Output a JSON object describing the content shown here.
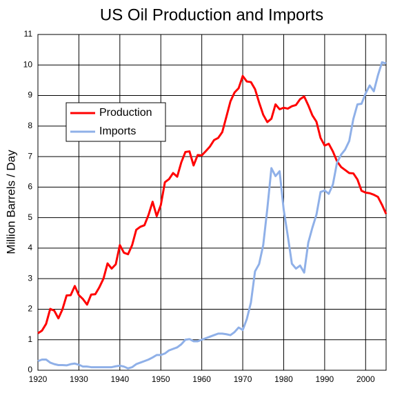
{
  "chart_data": {
    "type": "line",
    "title": "US Oil Production and Imports",
    "y_label": "Million Barrels / Day",
    "x": [
      1920,
      1921,
      1922,
      1923,
      1924,
      1925,
      1926,
      1927,
      1928,
      1929,
      1930,
      1931,
      1932,
      1933,
      1934,
      1935,
      1936,
      1937,
      1938,
      1939,
      1940,
      1941,
      1942,
      1943,
      1944,
      1945,
      1946,
      1947,
      1948,
      1949,
      1950,
      1951,
      1952,
      1953,
      1954,
      1955,
      1956,
      1957,
      1958,
      1959,
      1960,
      1961,
      1962,
      1963,
      1964,
      1965,
      1966,
      1967,
      1968,
      1969,
      1970,
      1971,
      1972,
      1973,
      1974,
      1975,
      1976,
      1977,
      1978,
      1979,
      1980,
      1981,
      1982,
      1983,
      1984,
      1985,
      1986,
      1987,
      1988,
      1989,
      1990,
      1991,
      1992,
      1993,
      1994,
      1995,
      1996,
      1997,
      1998,
      1999,
      2000,
      2001,
      2002,
      2003,
      2004,
      2005
    ],
    "series": [
      {
        "name": "Production",
        "color": "#ff0000",
        "values": [
          1.21,
          1.3,
          1.52,
          2.01,
          1.95,
          1.7,
          2.0,
          2.45,
          2.46,
          2.76,
          2.46,
          2.33,
          2.15,
          2.48,
          2.49,
          2.72,
          3.0,
          3.5,
          3.33,
          3.47,
          4.1,
          3.85,
          3.8,
          4.1,
          4.6,
          4.7,
          4.75,
          5.09,
          5.52,
          5.05,
          5.41,
          6.16,
          6.26,
          6.46,
          6.34,
          6.81,
          7.15,
          7.17,
          6.71,
          7.05,
          7.04,
          7.18,
          7.33,
          7.54,
          7.61,
          7.8,
          8.3,
          8.81,
          9.1,
          9.24,
          9.64,
          9.46,
          9.44,
          9.21,
          8.77,
          8.37,
          8.13,
          8.24,
          8.71,
          8.55,
          8.6,
          8.57,
          8.65,
          8.69,
          8.88,
          8.97,
          8.68,
          8.35,
          8.14,
          7.61,
          7.36,
          7.42,
          7.17,
          6.85,
          6.66,
          6.56,
          6.46,
          6.45,
          6.25,
          5.88,
          5.82,
          5.8,
          5.75,
          5.68,
          5.42,
          5.12
        ]
      },
      {
        "name": "Imports",
        "color": "#8fb0e8",
        "values": [
          0.3,
          0.35,
          0.35,
          0.25,
          0.2,
          0.17,
          0.17,
          0.16,
          0.2,
          0.22,
          0.18,
          0.12,
          0.12,
          0.1,
          0.1,
          0.1,
          0.1,
          0.1,
          0.1,
          0.13,
          0.15,
          0.12,
          0.06,
          0.1,
          0.2,
          0.25,
          0.3,
          0.35,
          0.42,
          0.5,
          0.5,
          0.55,
          0.65,
          0.7,
          0.75,
          0.85,
          1.0,
          1.02,
          0.95,
          0.95,
          1.0,
          1.05,
          1.1,
          1.15,
          1.2,
          1.2,
          1.18,
          1.15,
          1.25,
          1.4,
          1.32,
          1.68,
          2.22,
          3.24,
          3.48,
          4.1,
          5.29,
          6.62,
          6.36,
          6.52,
          5.26,
          4.4,
          3.49,
          3.33,
          3.43,
          3.2,
          4.18,
          4.67,
          5.1,
          5.84,
          5.89,
          5.78,
          6.08,
          6.79,
          7.06,
          7.23,
          7.51,
          8.23,
          8.71,
          8.73,
          9.07,
          9.33,
          9.14,
          9.66,
          10.09,
          10.05
        ]
      }
    ],
    "xlim": [
      1920,
      2005
    ],
    "xticks": [
      1920,
      1930,
      1940,
      1950,
      1960,
      1970,
      1980,
      1990,
      2000
    ],
    "ylim": [
      0,
      11
    ],
    "yticks": [
      0,
      1,
      2,
      3,
      4,
      5,
      6,
      7,
      8,
      9,
      10,
      11
    ],
    "grid": true,
    "legend": "upper left"
  }
}
